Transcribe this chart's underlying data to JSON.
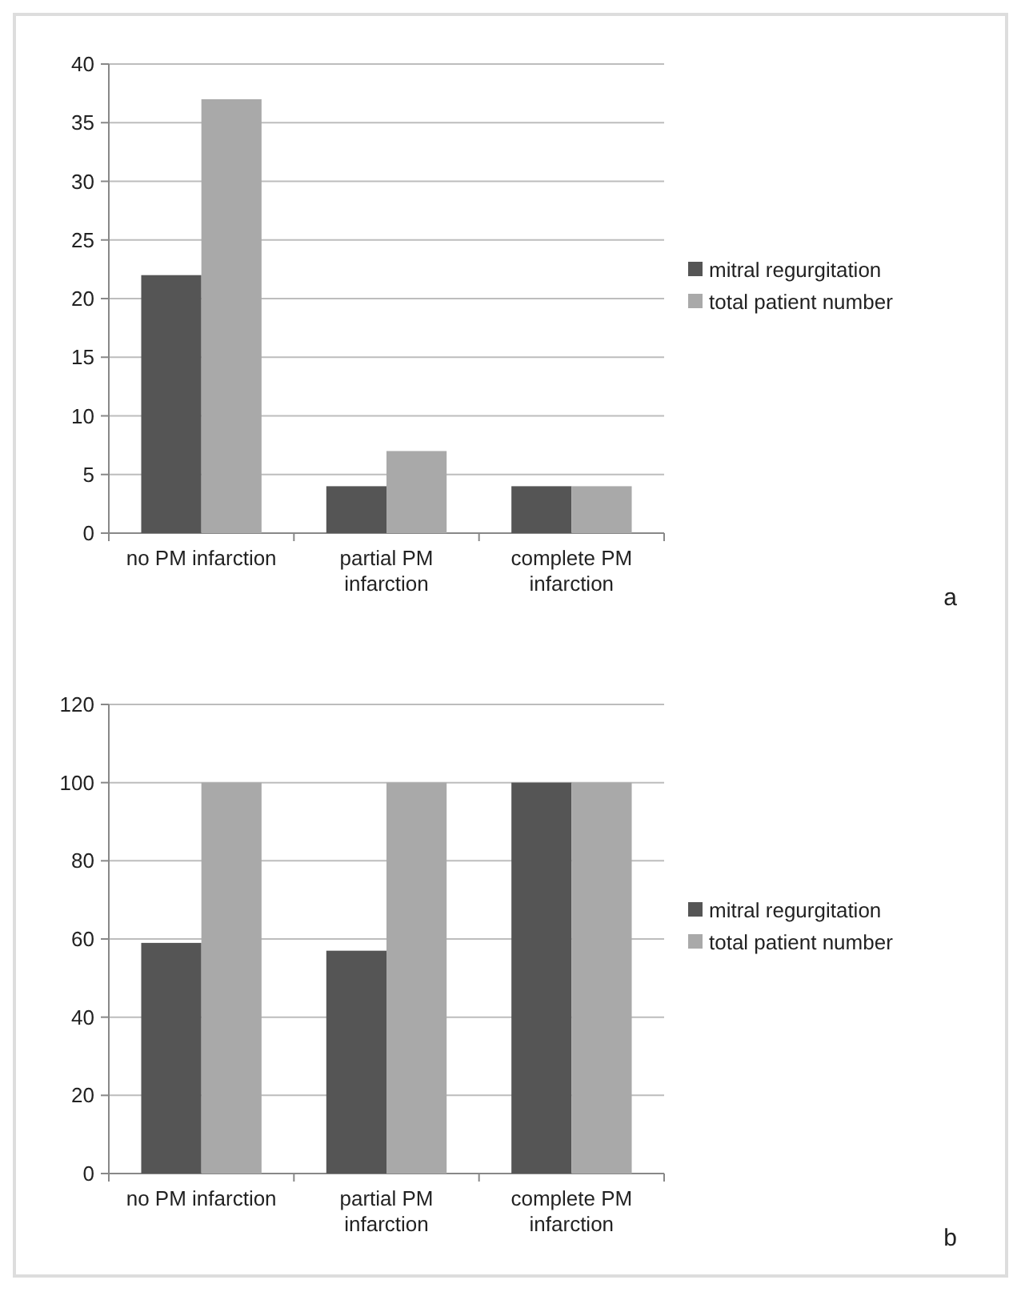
{
  "chart_data": [
    {
      "type": "bar",
      "categories": [
        "no PM infarction",
        "partial PM infarction",
        "complete PM infarction"
      ],
      "series": [
        {
          "name": "mitral regurgitation",
          "color": "#555555",
          "values": [
            22,
            4,
            4
          ]
        },
        {
          "name": "total patient number",
          "color": "#a9a9a9",
          "values": [
            37,
            7,
            4
          ]
        }
      ],
      "ylim": [
        0,
        40
      ],
      "yticks": [
        0,
        5,
        10,
        15,
        20,
        25,
        30,
        35,
        40
      ],
      "grid": "y",
      "legend": "right",
      "annotations": [
        "a"
      ]
    },
    {
      "type": "bar",
      "categories": [
        "no PM infarction",
        "partial PM infarction",
        "complete PM infarction"
      ],
      "series": [
        {
          "name": "mitral regurgitation",
          "color": "#555555",
          "values": [
            59,
            57,
            100
          ]
        },
        {
          "name": "total patient number",
          "color": "#a9a9a9",
          "values": [
            100,
            100,
            100
          ]
        }
      ],
      "ylim": [
        0,
        120
      ],
      "yticks": [
        0,
        20,
        40,
        60,
        80,
        100,
        120
      ],
      "grid": "y",
      "legend": "right",
      "annotations": [
        "b"
      ]
    }
  ]
}
